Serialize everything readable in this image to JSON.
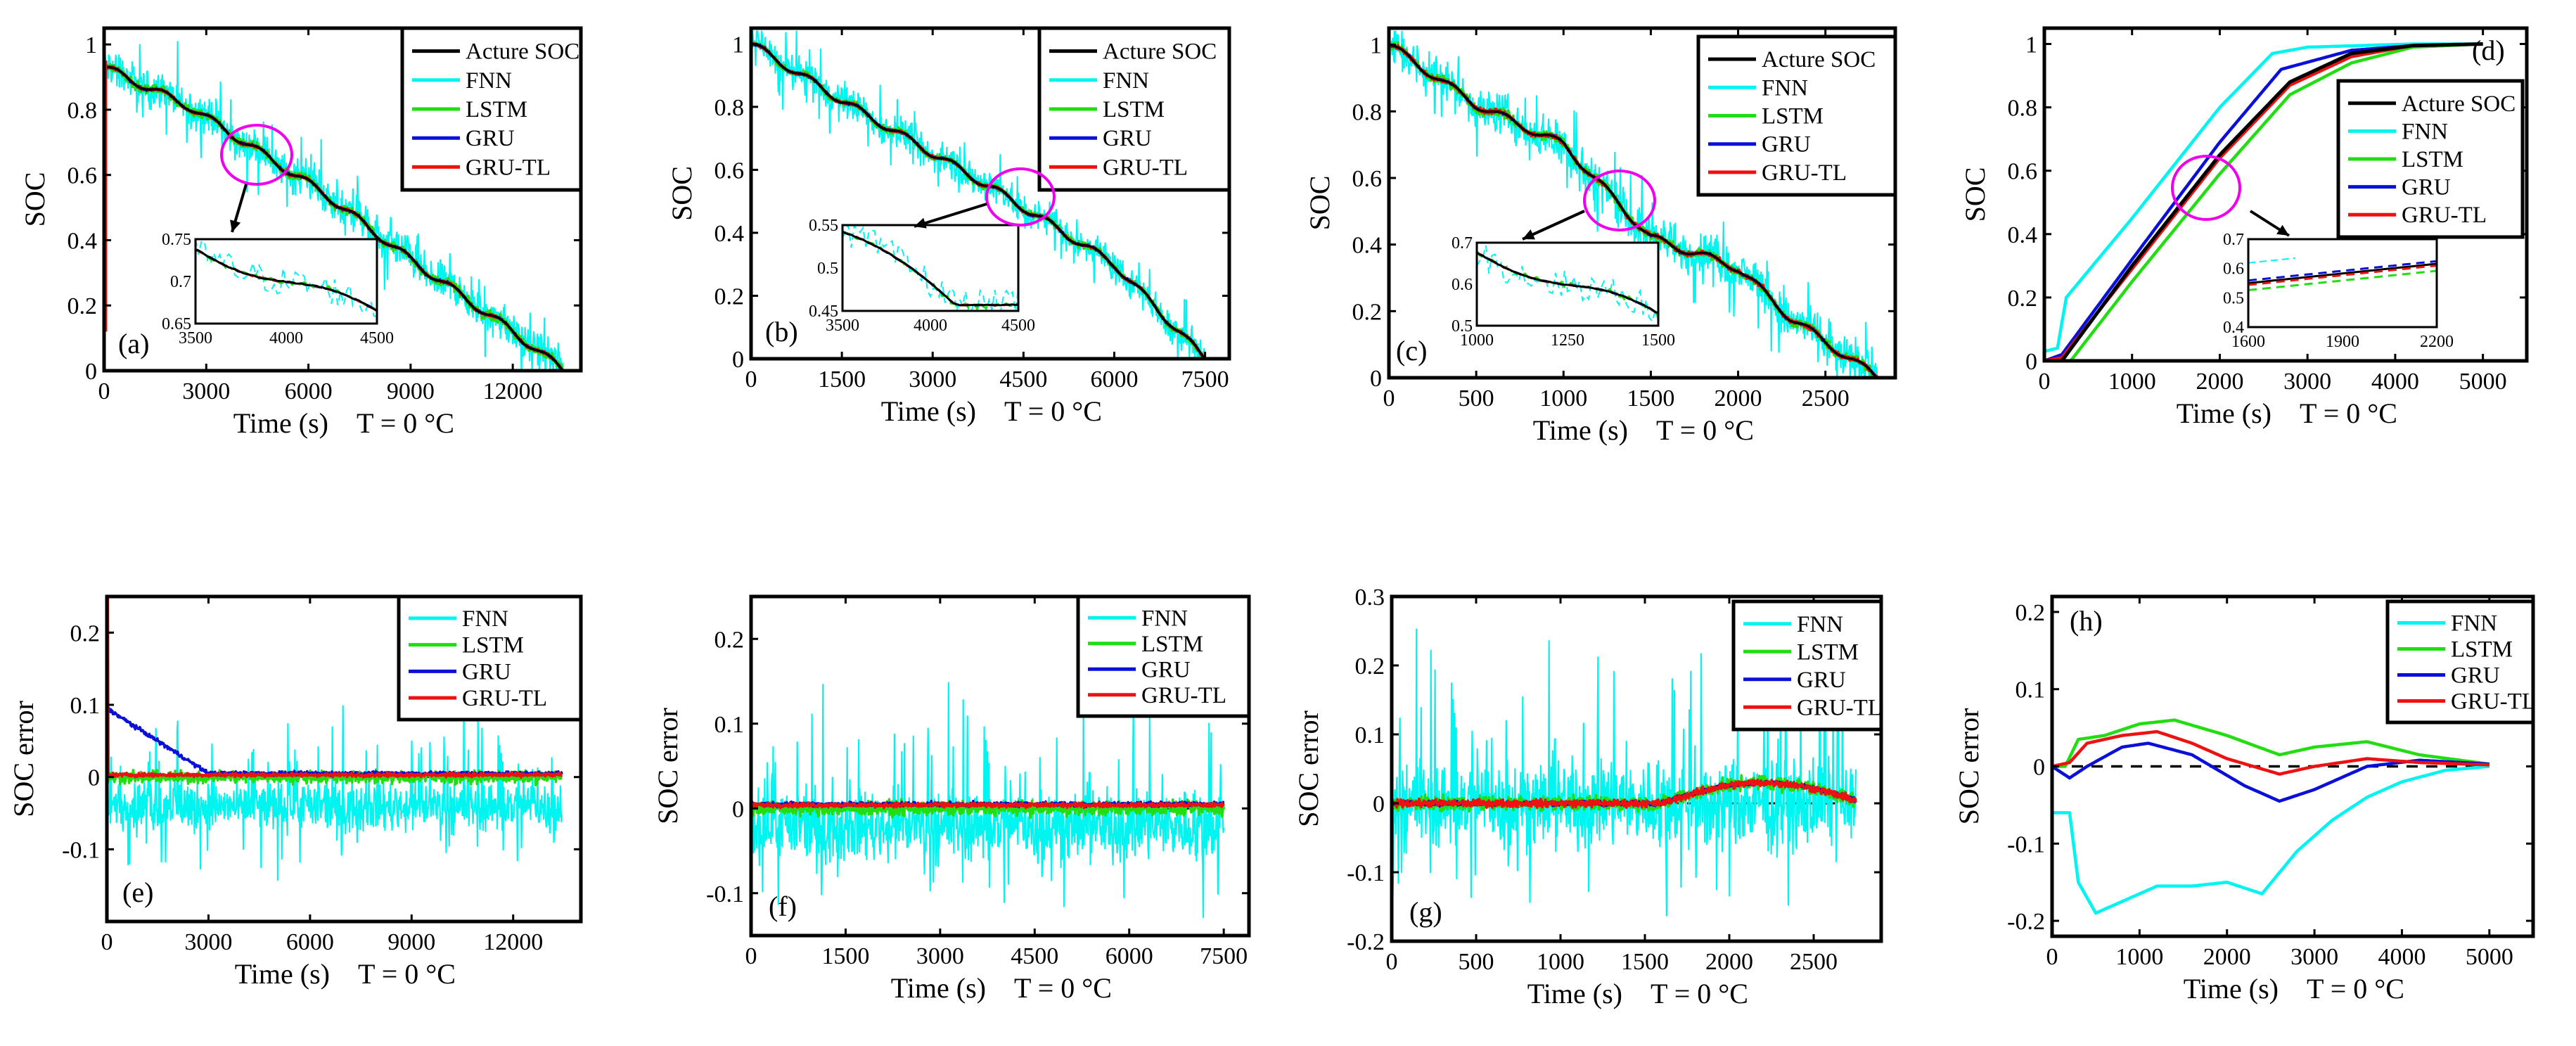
{
  "figure": {
    "temperature_note": "T = 0 °C"
  },
  "chart_data": [
    {
      "id": "a",
      "type": "line",
      "panel_label": "(a)",
      "xlabel": "Time (s)",
      "ylabel": "SOC",
      "temp_label": "T = 0 °C",
      "xlim": [
        0,
        14000
      ],
      "ylim": [
        0,
        1.05
      ],
      "xticks": [
        0,
        3000,
        6000,
        9000,
        12000
      ],
      "xticklabels": [
        "0",
        "3000",
        "6000",
        "9000",
        "12000"
      ],
      "yticks": [
        0,
        0.2,
        0.4,
        0.6,
        0.8,
        1
      ],
      "yticklabels": [
        "0",
        "0.2",
        "0.4",
        "0.6",
        "0.8",
        "1"
      ],
      "legend": [
        "Acture SOC",
        "FNN",
        "LSTM",
        "GRU",
        "GRU-TL"
      ],
      "true_curve": {
        "x": [
          0,
          2500,
          6500,
          9000,
          12000,
          13500
        ],
        "y": [
          0.93,
          0.81,
          0.54,
          0.34,
          0.12,
          0.0
        ]
      },
      "start_spike": 1.0,
      "series": [
        {
          "name": "FNN",
          "noise": 0.08,
          "bias": 0.0,
          "err_bias": -0.04
        },
        {
          "name": "LSTM",
          "noise": 0.02,
          "bias": 0.0,
          "err_bias": 0.0
        },
        {
          "name": "GRU",
          "noise": 0.006,
          "bias": 0.0,
          "err_bias": 0.0
        },
        {
          "name": "GRU-TL",
          "noise": 0.006,
          "bias": 0.0,
          "err_bias": 0.0
        }
      ],
      "inset": {
        "xlim": [
          3500,
          4500
        ],
        "ylim": [
          0.65,
          0.75
        ],
        "xticklabels": [
          "3500",
          "4000",
          "4500"
        ],
        "yticklabels": [
          "0.65",
          "0.7",
          "0.75"
        ]
      }
    },
    {
      "id": "b",
      "type": "line",
      "panel_label": "(b)",
      "xlabel": "Time (s)",
      "ylabel": "SOC",
      "temp_label": "T = 0 °C",
      "xlim": [
        0,
        7900
      ],
      "ylim": [
        0,
        1.05
      ],
      "xticks": [
        0,
        1500,
        3000,
        4500,
        6000,
        7500
      ],
      "xticklabels": [
        "0",
        "1500",
        "3000",
        "4500",
        "6000",
        "7500"
      ],
      "yticks": [
        0,
        0.2,
        0.4,
        0.6,
        0.8,
        1
      ],
      "yticklabels": [
        "0",
        "0.2",
        "0.4",
        "0.6",
        "0.8",
        "1"
      ],
      "legend": [
        "Acture SOC",
        "FNN",
        "LSTM",
        "GRU",
        "GRU-TL"
      ],
      "true_curve": {
        "x": [
          0,
          1500,
          4000,
          6000,
          7500
        ],
        "y": [
          1.0,
          0.82,
          0.54,
          0.3,
          0.0
        ]
      },
      "series": [
        {
          "name": "FNN",
          "noise": 0.07,
          "bias": 0.0
        },
        {
          "name": "LSTM",
          "noise": 0.015,
          "bias": 0.0
        },
        {
          "name": "GRU",
          "noise": 0.006,
          "bias": 0.0
        },
        {
          "name": "GRU-TL",
          "noise": 0.006,
          "bias": 0.0
        }
      ],
      "inset": {
        "xlim": [
          3500,
          4500
        ],
        "ylim": [
          0.45,
          0.55
        ],
        "xticklabels": [
          "3500",
          "4000",
          "4500"
        ],
        "yticklabels": [
          "0.45",
          "0.5",
          "0.55"
        ]
      }
    },
    {
      "id": "c",
      "type": "line",
      "panel_label": "(c)",
      "xlabel": "Time (s)",
      "ylabel": "SOC",
      "temp_label": "T = 0 °C",
      "xlim": [
        0,
        2900
      ],
      "ylim": [
        0,
        1.05
      ],
      "xticks": [
        0,
        500,
        1000,
        1500,
        2000,
        2500
      ],
      "xticklabels": [
        "0",
        "500",
        "1000",
        "1500",
        "2000",
        "2500"
      ],
      "yticks": [
        0,
        0.2,
        0.4,
        0.6,
        0.8,
        1
      ],
      "yticklabels": [
        "0",
        "0.2",
        "0.4",
        "0.6",
        "0.8",
        "1"
      ],
      "legend": [
        "Acture SOC",
        "FNN",
        "LSTM",
        "GRU",
        "GRU-TL"
      ],
      "true_curve": {
        "x": [
          0,
          500,
          1000,
          1500,
          2000,
          2300,
          2800
        ],
        "y": [
          1.0,
          0.82,
          0.7,
          0.42,
          0.33,
          0.18,
          0.0
        ]
      },
      "series": [
        {
          "name": "FNN",
          "noise": 0.09,
          "bias": 0.0
        },
        {
          "name": "LSTM",
          "noise": 0.02,
          "bias": 0.0
        },
        {
          "name": "GRU",
          "noise": 0.006,
          "bias": 0.0
        },
        {
          "name": "GRU-TL",
          "noise": 0.01,
          "bias": 0.0
        }
      ],
      "inset": {
        "xlim": [
          1000,
          1500
        ],
        "ylim": [
          0.5,
          0.7
        ],
        "xticklabels": [
          "1000",
          "1250",
          "1500"
        ],
        "yticklabels": [
          "0.5",
          "0.6",
          "0.7"
        ]
      }
    },
    {
      "id": "d",
      "type": "line",
      "panel_label": "(d)",
      "xlabel": "Time (s)",
      "ylabel": "SOC",
      "temp_label": "T = 0 °C",
      "xlim": [
        0,
        5500
      ],
      "ylim": [
        0,
        1.05
      ],
      "xticks": [
        0,
        1000,
        2000,
        3000,
        4000,
        5000
      ],
      "xticklabels": [
        "0",
        "1000",
        "2000",
        "3000",
        "4000",
        "5000"
      ],
      "yticks": [
        0,
        0.2,
        0.4,
        0.6,
        0.8,
        1
      ],
      "yticklabels": [
        "0",
        "0.2",
        "0.4",
        "0.6",
        "0.8",
        "1"
      ],
      "legend": [
        "Acture SOC",
        "FNN",
        "LSTM",
        "GRU",
        "GRU-TL"
      ],
      "curves": {
        "Acture SOC": {
          "x": [
            0,
            200,
            1000,
            2000,
            2800,
            3500,
            4200,
            5000
          ],
          "y": [
            0,
            0.0,
            0.3,
            0.65,
            0.88,
            0.97,
            0.995,
            1.0
          ]
        },
        "FNN": {
          "x": [
            0,
            150,
            250,
            1000,
            2000,
            2600,
            3000,
            4200,
            5000
          ],
          "y": [
            0.03,
            0.04,
            0.2,
            0.45,
            0.8,
            0.97,
            0.99,
            1.0,
            1.0
          ]
        },
        "LSTM": {
          "x": [
            0,
            300,
            1000,
            2000,
            2800,
            3500,
            4200,
            5000
          ],
          "y": [
            0,
            0.0,
            0.25,
            0.59,
            0.84,
            0.94,
            0.99,
            1.0
          ]
        },
        "GRU": {
          "x": [
            0,
            200,
            1000,
            2000,
            2700,
            3500,
            4200,
            5000
          ],
          "y": [
            0,
            0.02,
            0.32,
            0.69,
            0.92,
            0.98,
            0.995,
            1.0
          ]
        },
        "GRU-TL": {
          "x": [
            0,
            200,
            1000,
            2000,
            2800,
            3500,
            4200,
            5000
          ],
          "y": [
            0,
            0.01,
            0.29,
            0.64,
            0.87,
            0.96,
            0.995,
            1.0
          ]
        }
      },
      "inset": {
        "xlim": [
          1600,
          2200
        ],
        "ylim": [
          0.4,
          0.7
        ],
        "xticklabels": [
          "1600",
          "1900",
          "2200"
        ],
        "yticklabels": [
          "0.4",
          "0.5",
          "0.6",
          "0.7"
        ]
      }
    },
    {
      "id": "e",
      "type": "line",
      "panel_label": "(e)",
      "xlabel": "Time (s)",
      "ylabel": "SOC error",
      "temp_label": "T = 0 °C",
      "xlim": [
        0,
        14000
      ],
      "ylim": [
        -0.2,
        0.25
      ],
      "xticks": [
        0,
        3000,
        6000,
        9000,
        12000
      ],
      "xticklabels": [
        "0",
        "3000",
        "6000",
        "9000",
        "12000"
      ],
      "yticks": [
        -0.1,
        0,
        0.1,
        0.2
      ],
      "yticklabels": [
        "-0.1",
        "0",
        "0.1",
        "0.2"
      ],
      "legend": [
        "FNN",
        "LSTM",
        "GRU",
        "GRU-TL"
      ],
      "error_model": {
        "FNN": {
          "noise": 0.05,
          "bias": -0.04
        },
        "LSTM": {
          "noise": 0.012,
          "bias": 0.0
        },
        "GRU": {
          "noise": 0.004,
          "bias": 0.005,
          "decay_start": 0.09,
          "decay_end_x": 3000
        },
        "GRU-TL": {
          "noise": 0.004,
          "bias": 0.003
        }
      },
      "initial_spike": 0.25
    },
    {
      "id": "f",
      "type": "line",
      "panel_label": "(f)",
      "xlabel": "Time (s)",
      "ylabel": "SOC error",
      "temp_label": "T = 0 °C",
      "xlim": [
        0,
        7900
      ],
      "ylim": [
        -0.15,
        0.25
      ],
      "xticks": [
        0,
        1500,
        3000,
        4500,
        6000,
        7500
      ],
      "xticklabels": [
        "0",
        "1500",
        "3000",
        "4500",
        "6000",
        "7500"
      ],
      "yticks": [
        -0.1,
        0,
        0.1,
        0.2
      ],
      "yticklabels": [
        "-0.1",
        "0",
        "0.1",
        "0.2"
      ],
      "legend": [
        "FNN",
        "LSTM",
        "GRU",
        "GRU-TL"
      ],
      "error_model": {
        "FNN": {
          "noise": 0.06,
          "bias": -0.02
        },
        "LSTM": {
          "noise": 0.012,
          "bias": 0.0
        },
        "GRU": {
          "noise": 0.004,
          "bias": 0.005
        },
        "GRU-TL": {
          "noise": 0.004,
          "bias": 0.004
        }
      }
    },
    {
      "id": "g",
      "type": "line",
      "panel_label": "(g)",
      "xlabel": "Time (s)",
      "ylabel": "SOC error",
      "temp_label": "T = 0 °C",
      "xlim": [
        0,
        2900
      ],
      "ylim": [
        -0.2,
        0.3
      ],
      "xticks": [
        0,
        500,
        1000,
        1500,
        2000,
        2500
      ],
      "xticklabels": [
        "0",
        "500",
        "1000",
        "1500",
        "2000",
        "2500"
      ],
      "yticks": [
        -0.2,
        -0.1,
        0,
        0.1,
        0.2,
        0.3
      ],
      "yticklabels": [
        "-0.2",
        "-0.1",
        "0",
        "0.1",
        "0.2",
        "0.3"
      ],
      "legend": [
        "FNN",
        "LSTM",
        "GRU",
        "GRU-TL"
      ],
      "error_model": {
        "FNN": {
          "noise": 0.09,
          "bias": 0.0
        },
        "LSTM": {
          "noise": 0.015,
          "bias": 0.0
        },
        "GRU": {
          "noise": 0.005,
          "bias": 0.0
        },
        "GRU-TL": {
          "noise": 0.008,
          "bias": 0.0
        }
      }
    },
    {
      "id": "h",
      "type": "line",
      "panel_label": "(h)",
      "xlabel": "Time (s)",
      "ylabel": "SOC error",
      "temp_label": "T = 0 °C",
      "xlim": [
        0,
        5500
      ],
      "ylim": [
        -0.22,
        0.22
      ],
      "xticks": [
        0,
        1000,
        2000,
        3000,
        4000,
        5000
      ],
      "xticklabels": [
        "0",
        "1000",
        "2000",
        "3000",
        "4000",
        "5000"
      ],
      "yticks": [
        -0.2,
        -0.1,
        0,
        0.1,
        0.2
      ],
      "yticklabels": [
        "-0.2",
        "-0.1",
        "0",
        "0.1",
        "0.2"
      ],
      "legend": [
        "FNN",
        "LSTM",
        "GRU",
        "GRU-TL"
      ],
      "curves": {
        "FNN": {
          "x": [
            0,
            200,
            300,
            500,
            800,
            1200,
            1600,
            2000,
            2400,
            2800,
            3200,
            3600,
            4000,
            4500,
            5000
          ],
          "y": [
            -0.06,
            -0.06,
            -0.15,
            -0.19,
            -0.175,
            -0.155,
            -0.155,
            -0.15,
            -0.165,
            -0.11,
            -0.07,
            -0.04,
            -0.02,
            -0.005,
            0.0
          ]
        },
        "LSTM": {
          "x": [
            0,
            150,
            300,
            600,
            1000,
            1400,
            2000,
            2600,
            3000,
            3600,
            4200,
            5000
          ],
          "y": [
            0,
            0.0,
            0.035,
            0.04,
            0.055,
            0.06,
            0.04,
            0.015,
            0.025,
            0.032,
            0.015,
            0.003
          ]
        },
        "GRU": {
          "x": [
            0,
            200,
            400,
            800,
            1100,
            1600,
            2200,
            2600,
            3000,
            3600,
            4200,
            5000
          ],
          "y": [
            0,
            -0.015,
            0.0,
            0.025,
            0.03,
            0.015,
            -0.025,
            -0.045,
            -0.03,
            0.0,
            0.008,
            0.003
          ]
        },
        "GRU-TL": {
          "x": [
            0,
            200,
            400,
            800,
            1200,
            1600,
            2000,
            2600,
            3000,
            3600,
            4200,
            5000
          ],
          "y": [
            0,
            0.005,
            0.03,
            0.04,
            0.045,
            0.03,
            0.01,
            -0.01,
            0.0,
            0.01,
            0.005,
            0.002
          ]
        }
      }
    }
  ],
  "colors": {
    "Acture SOC": "#000000",
    "FNN": "#00f5f0",
    "LSTM": "#22dd11",
    "GRU": "#0a10d8",
    "GRU-TL": "#ee1111",
    "circle": "#ee00ee"
  }
}
